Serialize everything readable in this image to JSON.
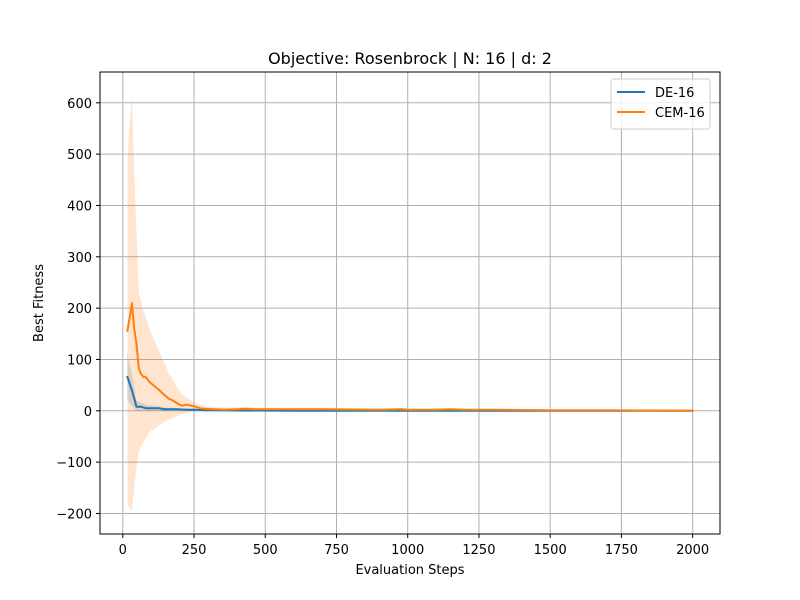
{
  "chart_data": {
    "type": "line",
    "title": "Objective: Rosenbrock | N: 16 | d: 2",
    "xlabel": "Evaluation Steps",
    "ylabel": "Best Fitness",
    "xlim": [
      -80,
      2096
    ],
    "ylim": [
      -240,
      660
    ],
    "xticks": [
      0,
      250,
      500,
      750,
      1000,
      1250,
      1500,
      1750,
      2000
    ],
    "yticks": [
      -200,
      -100,
      0,
      100,
      200,
      300,
      400,
      500,
      600
    ],
    "grid": true,
    "legend_position": "top-right",
    "series": [
      {
        "name": "DE-16",
        "color": "#1f77b4",
        "band_opacity": 0.2,
        "x": [
          16,
          32,
          48,
          64,
          80,
          96,
          112,
          128,
          144,
          160,
          192,
          224,
          256,
          288,
          320,
          400,
          500,
          600,
          800,
          1000,
          1250,
          1500,
          1750,
          2000
        ],
        "y": [
          66,
          40,
          8,
          8,
          5,
          5,
          5,
          5,
          3,
          3,
          3,
          2,
          2,
          1,
          1,
          0.5,
          0.3,
          0.2,
          0.1,
          0.1,
          0.05,
          0.02,
          0.01,
          0
        ],
        "lower": [
          20,
          10,
          0,
          0,
          0,
          0,
          0,
          0,
          0,
          0,
          0,
          0,
          0,
          0,
          0,
          0,
          0,
          0,
          0,
          0,
          0,
          0,
          0,
          0
        ],
        "upper": [
          112,
          70,
          20,
          16,
          12,
          11,
          10,
          9,
          7,
          6,
          5,
          4,
          3,
          2,
          2,
          1,
          0.6,
          0.4,
          0.2,
          0.2,
          0.1,
          0.05,
          0.02,
          0
        ]
      },
      {
        "name": "CEM-16",
        "color": "#ff7f0e",
        "band_opacity": 0.2,
        "x": [
          16,
          24,
          32,
          40,
          48,
          56,
          64,
          72,
          80,
          96,
          112,
          128,
          144,
          160,
          176,
          192,
          208,
          224,
          240,
          256,
          272,
          288,
          320,
          360,
          400,
          430,
          460,
          500,
          560,
          600,
          700,
          800,
          900,
          975,
          1000,
          1100,
          1150,
          1200,
          1300,
          1400,
          1500,
          1600,
          1700,
          1800,
          1900,
          2000
        ],
        "y": [
          156,
          180,
          210,
          160,
          130,
          82,
          72,
          66,
          66,
          55,
          48,
          40,
          32,
          24,
          20,
          14,
          10,
          12,
          10,
          8,
          5,
          4,
          3,
          2,
          3,
          4,
          3,
          3,
          3,
          3,
          3,
          2.5,
          2,
          3,
          2,
          2,
          3,
          2,
          2,
          1.5,
          1,
          1,
          1,
          0.5,
          0.3,
          0
        ],
        "lower": [
          -180,
          -190,
          -195,
          -150,
          -110,
          -80,
          -70,
          -60,
          -55,
          -40,
          -35,
          -28,
          -22,
          -18,
          -14,
          -10,
          -6,
          -4,
          -2,
          -1,
          0,
          0,
          0,
          0,
          0,
          0,
          0,
          0,
          0,
          0,
          0,
          0,
          0,
          0,
          0,
          0,
          0,
          0,
          0,
          0,
          0,
          0,
          0,
          0,
          0,
          0
        ],
        "upper": [
          480,
          560,
          610,
          470,
          350,
          230,
          215,
          195,
          185,
          155,
          135,
          115,
          95,
          75,
          60,
          45,
          32,
          26,
          20,
          15,
          12,
          10,
          8,
          6,
          7,
          8,
          6,
          6,
          6,
          6,
          6,
          5,
          4,
          6,
          4,
          4,
          5,
          4,
          4,
          3,
          2,
          2,
          2,
          1,
          0.6,
          0
        ]
      }
    ]
  }
}
